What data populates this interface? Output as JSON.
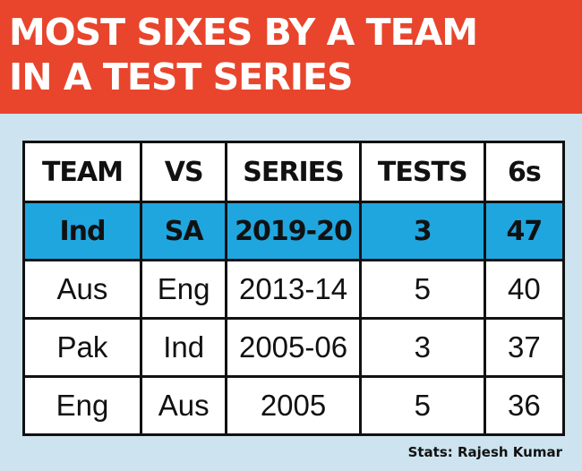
{
  "title": {
    "line1": "MOST SIXES BY A TEAM",
    "line2": "IN A TEST SERIES"
  },
  "chart_data": {
    "type": "table",
    "title": "MOST SIXES BY A TEAM IN A TEST SERIES",
    "columns": [
      "TEAM",
      "VS",
      "SERIES",
      "TESTS",
      "6s"
    ],
    "rows": [
      [
        "Ind",
        "SA",
        "2019-20",
        "3",
        "47"
      ],
      [
        "Aus",
        "Eng",
        "2013-14",
        "5",
        "40"
      ],
      [
        "Pak",
        "Ind",
        "2005-06",
        "3",
        "37"
      ],
      [
        "Eng",
        "Aus",
        "2005",
        "5",
        "36"
      ]
    ],
    "highlighted_row": 0
  },
  "source": "Stats: Rajesh Kumar",
  "colors": {
    "header_bg": "#e8452c",
    "panel_bg": "#cde3ef",
    "highlight_row": "#1fa6df"
  }
}
